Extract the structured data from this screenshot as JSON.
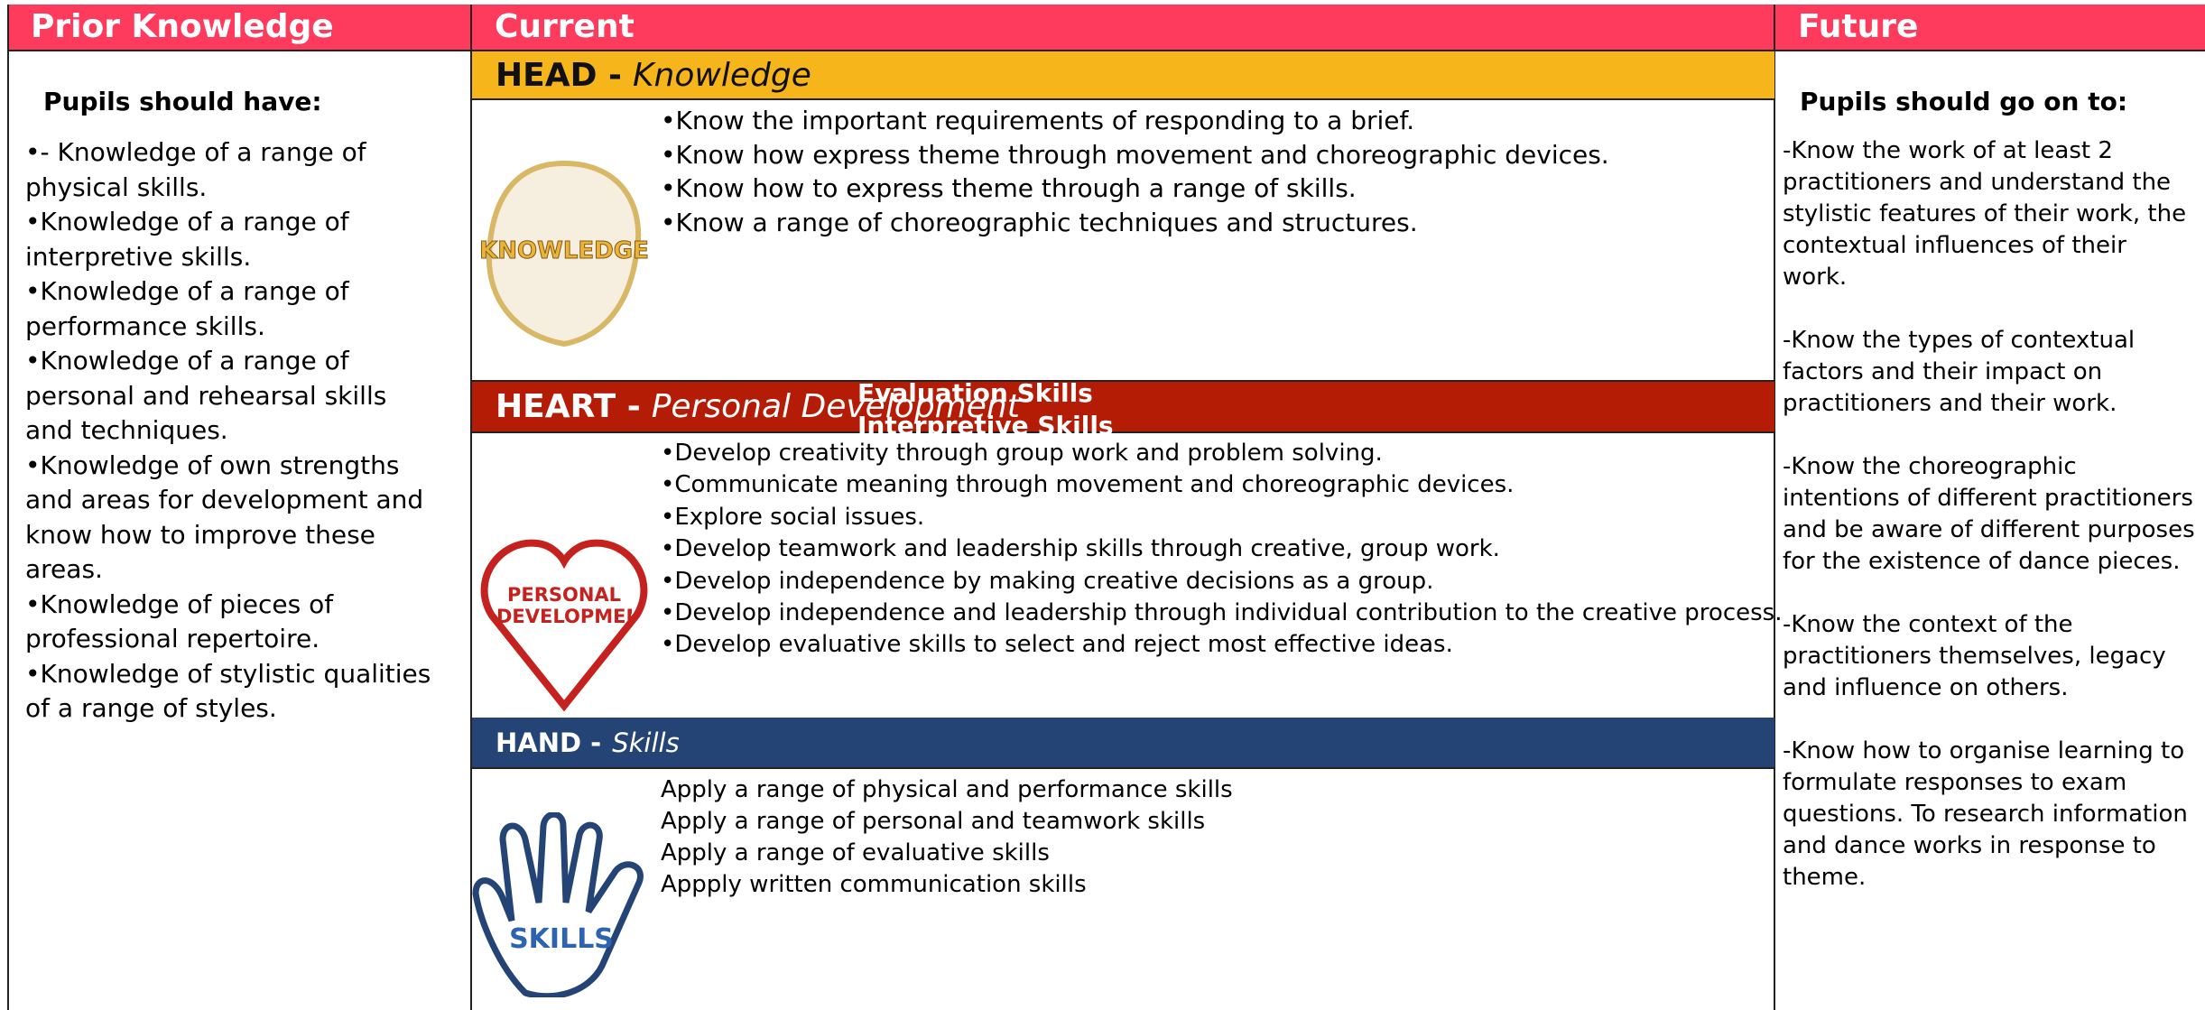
{
  "prior": {
    "header": "Prior Knowledge",
    "subheading": "Pupils should have:",
    "items": [
      "•- Knowledge of a range of physical skills.",
      "•Knowledge of a range of interpretive skills.",
      "•Knowledge of a range of performance skills.",
      "•Knowledge of a range of personal and rehearsal skills and techniques.",
      "•Knowledge of own strengths and areas for development and know how to improve these areas.",
      "•Knowledge of pieces of professional repertoire.",
      "•Knowledge of stylistic qualities of a range of styles."
    ]
  },
  "current": {
    "header": "Current",
    "head": {
      "label": "HEAD -",
      "sublabel": "Knowledge",
      "icon": "KNOWLEDGE",
      "items": [
        "•Know the important requirements of responding to a brief.",
        "•Know how express theme through movement and choreographic devices.",
        "•Know how to express theme through a range of skills.",
        "•Know a range of choreographic techniques and structures."
      ]
    },
    "heart": {
      "label": "HEART -",
      "sublabel": "Personal Development",
      "icon": "PERSONAL DEVELOPMENT",
      "overlays": [
        "Evaluation Skills",
        "Interpretive Skills"
      ],
      "items": [
        "•Develop creativity through group work and problem solving.",
        "•Communicate meaning through movement and choreographic devices.",
        "•Explore social issues.",
        "•Develop teamwork and leadership skills through creative, group work.",
        "•Develop independence by making creative decisions as a group.",
        "•Develop independence and leadership through individual contribution to the creative process.",
        "•Develop evaluative skills to select and reject most effective ideas."
      ]
    },
    "hand": {
      "label": "HAND -",
      "sublabel": "Skills",
      "icon": "SKILLS",
      "items": [
        "Apply a range of physical and performance skills",
        "Apply a range of personal and teamwork skills",
        "Apply a range of evaluative skills",
        "Appply written communication skills"
      ]
    }
  },
  "future": {
    "header": "Future",
    "subheading": "Pupils should go on to:",
    "items": [
      "-Know the work of at least 2 practitioners and understand the stylistic features of their work, the contextual influences of their work.",
      "-Know the types of contextual factors and their impact on practitioners and their work.",
      "-Know the choreographic intentions of different practitioners and be aware of different purposes for the existence of dance pieces.",
      "-Know the context of the practitioners themselves, legacy and influence on others.",
      "-Know how to organise learning to formulate responses to exam questions. To research information and dance works in response to theme."
    ]
  }
}
